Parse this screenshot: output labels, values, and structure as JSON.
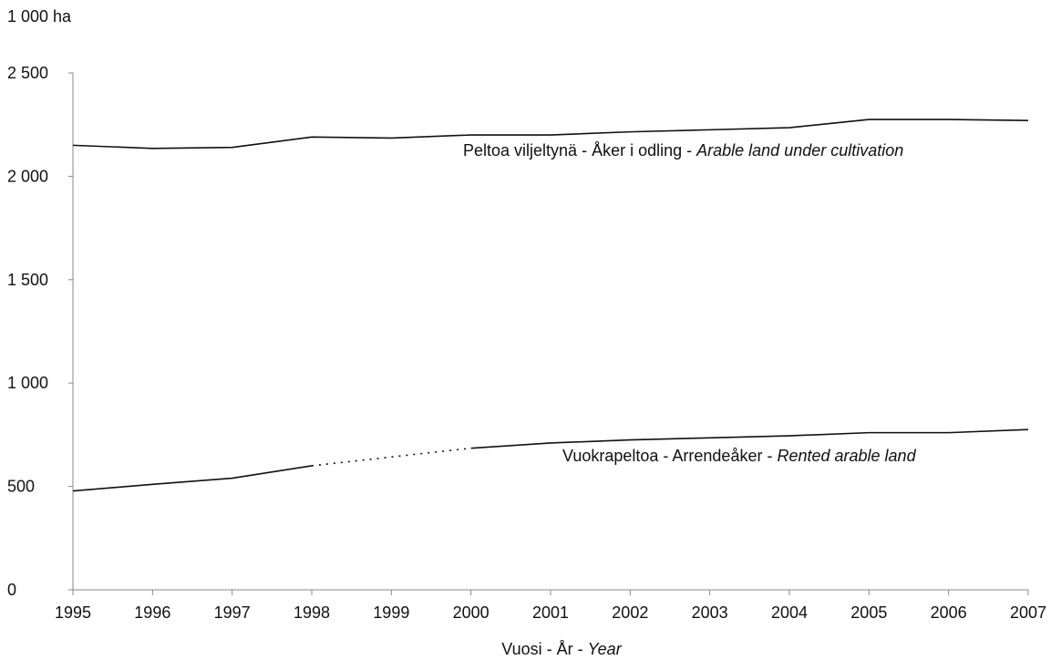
{
  "chart_data": {
    "type": "line",
    "unit_label": "1 000 ha",
    "x_title": {
      "plain": "Vuosi - År - ",
      "italic": "Year"
    },
    "x": [
      1995,
      1996,
      1997,
      1998,
      1999,
      2000,
      2001,
      2002,
      2003,
      2004,
      2005,
      2006,
      2007
    ],
    "xtick_labels": [
      "1995",
      "1996",
      "1997",
      "1998",
      "1999",
      "2000",
      "2001",
      "2002",
      "2003",
      "2004",
      "2005",
      "2006",
      "2007"
    ],
    "ylim": [
      0,
      2500
    ],
    "yticks": [
      0,
      500,
      1000,
      1500,
      2000,
      2500
    ],
    "ytick_labels": [
      "0",
      "500",
      "1 000",
      "1 500",
      "2 000",
      "2 500"
    ],
    "grid": false,
    "series": [
      {
        "name": {
          "plain": "Peltoa viljeltynä - Åker i odling - ",
          "italic": "Arable land under cultivation"
        },
        "x": [
          1995,
          1996,
          1997,
          1998,
          1999,
          2000,
          2001,
          2002,
          2003,
          2004,
          2005,
          2006,
          2007
        ],
        "y": [
          2150,
          2135,
          2140,
          2190,
          2185,
          2200,
          2200,
          2215,
          2225,
          2235,
          2275,
          2275,
          2270
        ],
        "color": "#111111"
      },
      {
        "name": {
          "plain": "Vuokrapeltoa - Arrendeåker - ",
          "italic": "Rented arable land"
        },
        "x": [
          1995,
          1996,
          1997,
          1998,
          2000,
          2001,
          2002,
          2003,
          2004,
          2005,
          2006,
          2007
        ],
        "y": [
          478,
          510,
          540,
          600,
          685,
          710,
          725,
          735,
          745,
          760,
          760,
          775
        ],
        "gap_dotted_between": [
          1998,
          2000
        ],
        "color": "#111111"
      }
    ]
  }
}
